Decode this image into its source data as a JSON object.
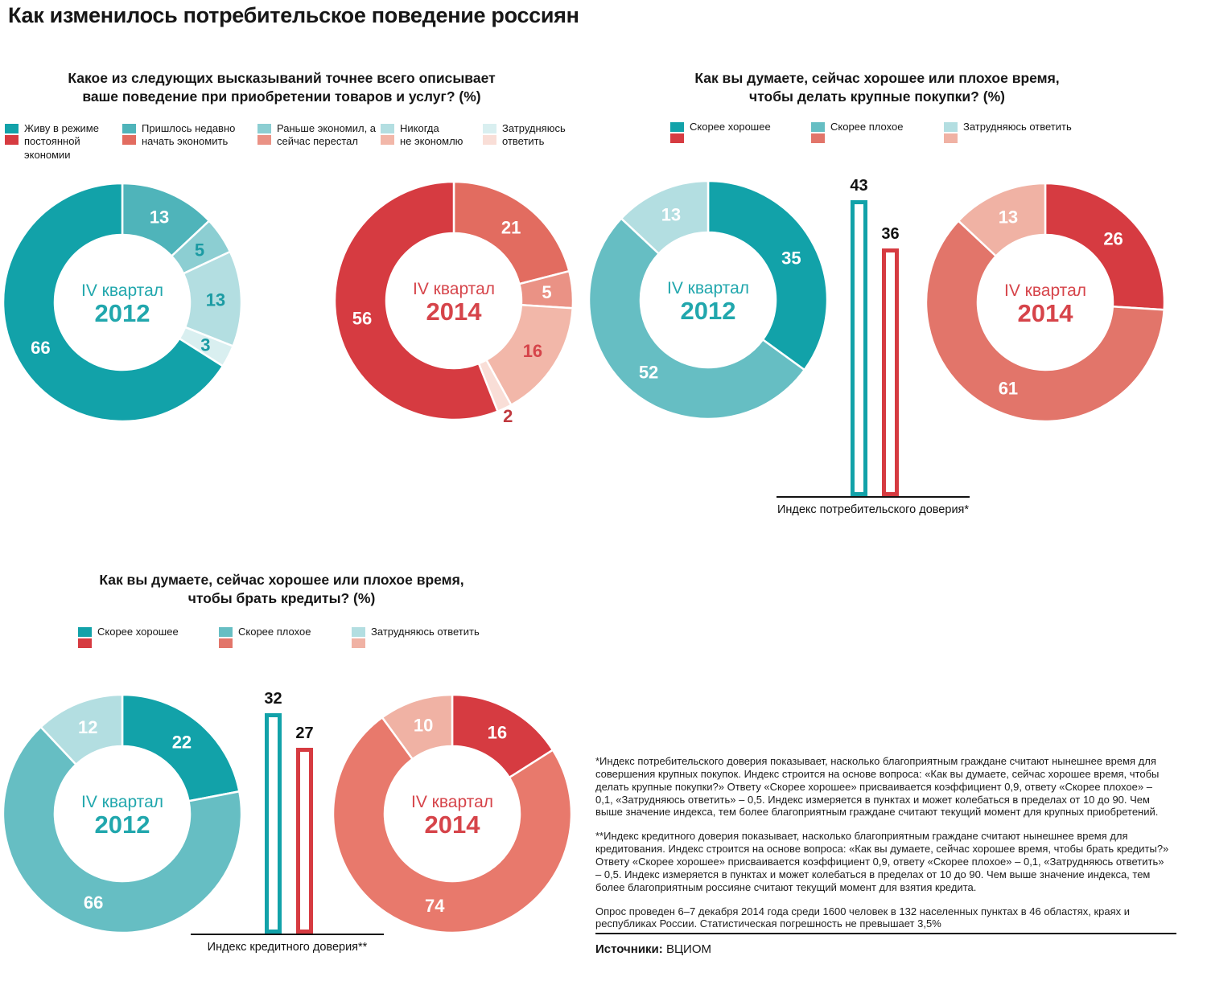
{
  "title": "Как изменилось потребительское поведение россиян",
  "q1": {
    "line1": "Какое из следующих высказываний точнее всего описывает",
    "line2": "ваше поведение при приобретении товаров и услуг? (%)",
    "legend": [
      {
        "label": "Живу в режиме постоянной экономии",
        "teal": "#12a2a9",
        "red": "#d63b41"
      },
      {
        "label": "Пришлось недавно начать экономить",
        "teal": "#4fb4ba",
        "red": "#e26c60"
      },
      {
        "label": "Раньше экономил, а сейчас перестал",
        "teal": "#8cced2",
        "red": "#ea9285"
      },
      {
        "label": "Никогда не экономлю",
        "teal": "#b3dee1",
        "red": "#f2b7a9"
      },
      {
        "label": "Затрудняюсь ответить",
        "teal": "#d9eff0",
        "red": "#f9ded7"
      }
    ]
  },
  "q2": {
    "line1": "Как вы думаете, сейчас хорошее или плохое время,",
    "line2": "чтобы делать крупные покупки? (%)",
    "legend": [
      {
        "label": "Скорее хорошее",
        "teal": "#12a2a9",
        "red": "#d63b41"
      },
      {
        "label": "Скорее плохое",
        "teal": "#66bec3",
        "red": "#e2756a"
      },
      {
        "label": "Затрудняюсь ответить",
        "teal": "#b3dee1",
        "red": "#f0b2a4"
      }
    ]
  },
  "q3": {
    "line1": "Как вы думаете, сейчас хорошее или плохое время,",
    "line2": "чтобы брать кредиты? (%)",
    "legend": [
      {
        "label": "Скорее хорошее",
        "teal": "#12a2a9",
        "red": "#d63b41"
      },
      {
        "label": "Скорее плохое",
        "teal": "#66bec3",
        "red": "#e2756a"
      },
      {
        "label": "Затрудняюсь ответить",
        "teal": "#b3dee1",
        "red": "#f0b2a4"
      }
    ]
  },
  "chart_data": [
    {
      "type": "pie",
      "name": "Поведение при покупках — IV квартал 2012",
      "center_line1": "IV квартал",
      "center_line2": "2012",
      "center_color": "#21a7ad",
      "slices": [
        {
          "label": "Пришлось недавно начать экономить",
          "value": 13,
          "color": "#4fb4ba",
          "text_color": "#ffffff"
        },
        {
          "label": "Раньше экономил, а сейчас перестал",
          "value": 5,
          "color": "#8cced2",
          "text_color": "#1b9ba3"
        },
        {
          "label": "Никогда не экономлю",
          "value": 13,
          "color": "#b3dee1",
          "text_color": "#1b9ba3"
        },
        {
          "label": "Затрудняюсь ответить",
          "value": 3,
          "color": "#d9eff0",
          "text_color": "#1b9ba3"
        },
        {
          "label": "Живу в режиме постоянной экономии",
          "value": 66,
          "color": "#12a2a9",
          "text_color": "#ffffff"
        }
      ]
    },
    {
      "type": "pie",
      "name": "Поведение при покупках — IV квартал 2014",
      "center_line1": "IV квартал",
      "center_line2": "2014",
      "center_color": "#d6444a",
      "slices": [
        {
          "label": "Пришлось недавно начать экономить",
          "value": 21,
          "color": "#e26c60",
          "text_color": "#ffffff"
        },
        {
          "label": "Раньше экономил, а сейчас перестал",
          "value": 5,
          "color": "#ea9285",
          "text_color": "#ffffff"
        },
        {
          "label": "Никогда не экономлю",
          "value": 16,
          "color": "#f2b7a9",
          "text_color": "#d6444a"
        },
        {
          "label": "Затрудняюсь ответить",
          "value": 2,
          "color": "#f9ded7",
          "text_color": "#c0393e",
          "outside": true
        },
        {
          "label": "Живу в режиме постоянной экономии",
          "value": 56,
          "color": "#d63b41",
          "text_color": "#ffffff"
        }
      ]
    },
    {
      "type": "pie",
      "name": "Время для крупных покупок — IV квартал 2012",
      "center_line1": "IV квартал",
      "center_line2": "2012",
      "center_color": "#21a7ad",
      "slices": [
        {
          "label": "Скорее хорошее",
          "value": 35,
          "color": "#12a2a9",
          "text_color": "#ffffff"
        },
        {
          "label": "Скорее плохое",
          "value": 52,
          "color": "#66bec3",
          "text_color": "#ffffff"
        },
        {
          "label": "Затрудняюсь ответить",
          "value": 13,
          "color": "#b3dee1",
          "text_color": "#ffffff"
        }
      ]
    },
    {
      "type": "pie",
      "name": "Время для крупных покупок — IV квартал 2014",
      "center_line1": "IV квартал",
      "center_line2": "2014",
      "center_color": "#d6444a",
      "slices": [
        {
          "label": "Скорее хорошее",
          "value": 26,
          "color": "#d63b41",
          "text_color": "#ffffff"
        },
        {
          "label": "Скорее плохое",
          "value": 61,
          "color": "#e2756a",
          "text_color": "#ffffff"
        },
        {
          "label": "Затрудняюсь ответить",
          "value": 13,
          "color": "#f0b2a4",
          "text_color": "#ffffff"
        }
      ]
    },
    {
      "type": "bar",
      "caption": "Индекс потребительского доверия*",
      "bars": [
        {
          "label": "IV квартал 2012",
          "value": 43,
          "color": "#12a2a9"
        },
        {
          "label": "IV квартал 2014",
          "value": 36,
          "color": "#d63b41"
        }
      ],
      "ylim": [
        10,
        90
      ]
    },
    {
      "type": "pie",
      "name": "Время брать кредиты — IV квартал 2012",
      "center_line1": "IV квартал",
      "center_line2": "2012",
      "center_color": "#21a7ad",
      "slices": [
        {
          "label": "Скорее хорошее",
          "value": 22,
          "color": "#12a2a9",
          "text_color": "#ffffff"
        },
        {
          "label": "Скорее плохое",
          "value": 66,
          "color": "#66bec3",
          "text_color": "#ffffff"
        },
        {
          "label": "Затрудняюсь ответить",
          "value": 12,
          "color": "#b3dee1",
          "text_color": "#ffffff"
        }
      ]
    },
    {
      "type": "pie",
      "name": "Время брать кредиты — IV квартал 2014",
      "center_line1": "IV квартал",
      "center_line2": "2014",
      "center_color": "#d6444a",
      "slices": [
        {
          "label": "Скорее хорошее",
          "value": 16,
          "color": "#d63b41",
          "text_color": "#ffffff"
        },
        {
          "label": "Скорее плохое",
          "value": 74,
          "color": "#e8796c",
          "text_color": "#ffffff"
        },
        {
          "label": "Затрудняюсь ответить",
          "value": 10,
          "color": "#f0b2a4",
          "text_color": "#ffffff"
        }
      ]
    },
    {
      "type": "bar",
      "caption": "Индекс кредитного доверия**",
      "bars": [
        {
          "label": "IV квартал 2012",
          "value": 32,
          "color": "#12a2a9"
        },
        {
          "label": "IV квартал 2014",
          "value": 27,
          "color": "#d63b41"
        }
      ],
      "ylim": [
        10,
        90
      ]
    }
  ],
  "footnotes": {
    "p1": "*Индекс потребительского доверия показывает, насколько благоприятным граждане считают нынешнее время для совершения крупных покупок. Индекс строится на основе вопроса: «Как вы думаете, сейчас хорошее время, чтобы делать крупные покупки?» Ответу «Скорее хорошее» присваивается коэффициент 0,9, ответу «Скорее плохое» – 0,1, «Затрудняюсь ответить» – 0,5. Индекс измеряется в пунктах и может колебаться в пределах от 10 до 90. Чем выше значение индекса, тем более благоприятным граждане считают текущий момент для крупных приобретений.",
    "p2": "**Индекс кредитного доверия показывает, насколько благоприятным граждане считают нынешнее время для кредитования. Индекс строится на основе вопроса: «Как вы думаете, сейчас хорошее время, чтобы брать кредиты?» Ответу «Скорее хорошее» присваивается коэффициент 0,9, ответу «Скорее плохое» – 0,1, «Затрудняюсь ответить» – 0,5. Индекс измеряется в пунктах и может колебаться в пределах от 10 до 90. Чем выше значение индекса, тем более благоприятным россияне считают текущий момент для взятия кредита.",
    "p3": "Опрос проведен 6–7 декабря 2014 года среди 1600 человек в 132 населенных пунктах в 46 областях, краях и республиках России. Статистическая погрешность не превышает 3,5%"
  },
  "sources": {
    "label": "Источники:",
    "value": "ВЦИОМ"
  }
}
